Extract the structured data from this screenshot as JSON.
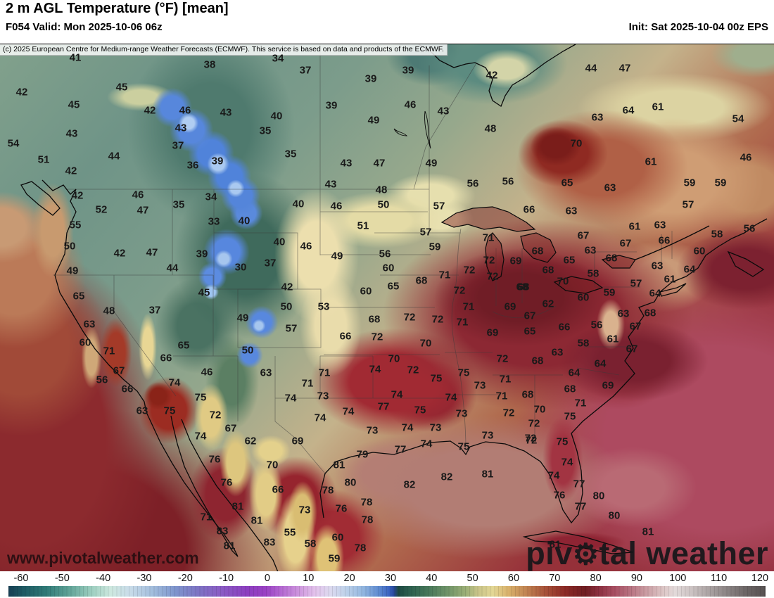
{
  "header": {
    "title": "2 m AGL Temperature (°F) [mean]",
    "valid": "F054 Valid: Mon 2025-10-06 06z",
    "init": "Init: Sat 2025-10-04 00z EPS"
  },
  "copyright": "(c) 2025 European Centre for Medium-range Weather Forecasts (ECMWF). This service is based on data and products of the ECMWF.",
  "watermarks": {
    "site": "www.pivotalweather.com",
    "logo_pre": "piv",
    "logo_gear": "⚙",
    "logo_post": "tal weather"
  },
  "colorbar": {
    "unit": "°F",
    "range": [
      -63,
      123
    ],
    "ticks": [
      "-60",
      "-50",
      "-40",
      "-30",
      "-20",
      "-10",
      "0",
      "10",
      "20",
      "30",
      "40",
      "50",
      "60",
      "70",
      "80",
      "90",
      "100",
      "110",
      "120"
    ],
    "gradient": [
      [
        0,
        "#173f54"
      ],
      [
        2,
        "#1e5a63"
      ],
      [
        5,
        "#2f7a77"
      ],
      [
        8,
        "#5fa397"
      ],
      [
        11,
        "#9dcfc0"
      ],
      [
        13.5,
        "#cde8df"
      ],
      [
        16,
        "#c9dce9"
      ],
      [
        19,
        "#a3bedd"
      ],
      [
        22,
        "#7e95cd"
      ],
      [
        25,
        "#7d74c4"
      ],
      [
        28,
        "#8a5cc4"
      ],
      [
        31.5,
        "#8c3ec0"
      ],
      [
        34,
        "#9a41c4"
      ],
      [
        36,
        "#b468d2"
      ],
      [
        38.5,
        "#cf97de"
      ],
      [
        40.5,
        "#e3c2ec"
      ],
      [
        42.5,
        "#dcd9ef"
      ],
      [
        44.5,
        "#bfd2ea"
      ],
      [
        47,
        "#8fb4df"
      ],
      [
        49,
        "#5c88d0"
      ],
      [
        50.3,
        "#3a62c0"
      ],
      [
        50.9,
        "#27489a"
      ],
      [
        51.5,
        "#1d4a43"
      ],
      [
        53,
        "#2c5f4e"
      ],
      [
        55.5,
        "#47785a"
      ],
      [
        58,
        "#6f9468"
      ],
      [
        60.5,
        "#9db077"
      ],
      [
        62,
        "#c9c489"
      ],
      [
        64,
        "#e3d795"
      ],
      [
        66,
        "#d9b26c"
      ],
      [
        68.5,
        "#c08150"
      ],
      [
        71,
        "#a65038"
      ],
      [
        73.5,
        "#8c2a26"
      ],
      [
        76.2,
        "#6f1d22"
      ],
      [
        78,
        "#8c3040"
      ],
      [
        80,
        "#a84e62"
      ],
      [
        82.3,
        "#b97583"
      ],
      [
        84,
        "#c9989f"
      ],
      [
        86.5,
        "#ddc6c6"
      ],
      [
        88,
        "#e3dada"
      ],
      [
        90,
        "#cfc6c6"
      ],
      [
        92.5,
        "#aba3a3"
      ],
      [
        95,
        "#8a8383"
      ],
      [
        97.5,
        "#6b6565"
      ],
      [
        100,
        "#555050"
      ]
    ]
  },
  "map": {
    "stations": [
      [
        107,
        82,
        41
      ],
      [
        298,
        92,
        38
      ],
      [
        395,
        83,
        34
      ],
      [
        434,
        100,
        37
      ],
      [
        527,
        112,
        39
      ],
      [
        580,
        100,
        39
      ],
      [
        699,
        107,
        42
      ],
      [
        840,
        97,
        44
      ],
      [
        888,
        97,
        47
      ],
      [
        31,
        131,
        42
      ],
      [
        173,
        124,
        45
      ],
      [
        105,
        149,
        45
      ],
      [
        213,
        157,
        42
      ],
      [
        263,
        157,
        46
      ],
      [
        321,
        160,
        43
      ],
      [
        471,
        150,
        39
      ],
      [
        393,
        165,
        40
      ],
      [
        583,
        149,
        46
      ],
      [
        630,
        158,
        43
      ],
      [
        531,
        171,
        49
      ],
      [
        697,
        183,
        48
      ],
      [
        377,
        186,
        35
      ],
      [
        935,
        152,
        61
      ],
      [
        893,
        157,
        64
      ],
      [
        849,
        167,
        63
      ],
      [
        1049,
        169,
        54
      ],
      [
        102,
        190,
        43
      ],
      [
        257,
        182,
        43
      ],
      [
        253,
        207,
        37
      ],
      [
        19,
        204,
        54
      ],
      [
        62,
        227,
        51
      ],
      [
        162,
        222,
        44
      ],
      [
        309,
        229,
        39
      ],
      [
        274,
        235,
        36
      ],
      [
        413,
        219,
        35
      ],
      [
        492,
        232,
        43
      ],
      [
        539,
        232,
        47
      ],
      [
        613,
        232,
        49
      ],
      [
        819,
        204,
        70
      ],
      [
        925,
        230,
        61
      ],
      [
        1060,
        224,
        46
      ],
      [
        101,
        243,
        42
      ],
      [
        110,
        278,
        42
      ],
      [
        196,
        277,
        46
      ],
      [
        300,
        280,
        34
      ],
      [
        254,
        291,
        35
      ],
      [
        144,
        298,
        52
      ],
      [
        203,
        299,
        47
      ],
      [
        470,
        262,
        43
      ],
      [
        542,
        270,
        48
      ],
      [
        424,
        290,
        40
      ],
      [
        478,
        293,
        46
      ],
      [
        545,
        291,
        50
      ],
      [
        624,
        293,
        57
      ],
      [
        672,
        261,
        56
      ],
      [
        722,
        258,
        56
      ],
      [
        806,
        260,
        65
      ],
      [
        867,
        267,
        63
      ],
      [
        980,
        260,
        59
      ],
      [
        1024,
        260,
        59
      ],
      [
        978,
        291,
        57
      ],
      [
        752,
        298,
        66
      ],
      [
        812,
        300,
        63
      ],
      [
        107,
        320,
        55
      ],
      [
        304,
        315,
        33
      ],
      [
        347,
        314,
        40
      ],
      [
        99,
        350,
        50
      ],
      [
        170,
        360,
        42
      ],
      [
        216,
        359,
        47
      ],
      [
        287,
        361,
        39
      ],
      [
        397,
        344,
        40
      ],
      [
        435,
        350,
        46
      ],
      [
        516,
        321,
        51
      ],
      [
        605,
        330,
        57
      ],
      [
        618,
        351,
        59
      ],
      [
        694,
        338,
        71
      ],
      [
        829,
        335,
        67
      ],
      [
        902,
        322,
        61
      ],
      [
        938,
        320,
        63
      ],
      [
        1065,
        325,
        56
      ],
      [
        1019,
        333,
        58
      ],
      [
        103,
        385,
        49
      ],
      [
        245,
        381,
        44
      ],
      [
        342,
        380,
        30
      ],
      [
        384,
        374,
        37
      ],
      [
        479,
        364,
        49
      ],
      [
        547,
        361,
        56
      ],
      [
        552,
        381,
        60
      ],
      [
        599,
        399,
        68
      ],
      [
        559,
        407,
        65
      ],
      [
        667,
        384,
        72
      ],
      [
        695,
        370,
        72
      ],
      [
        733,
        371,
        69
      ],
      [
        764,
        357,
        68
      ],
      [
        809,
        370,
        65
      ],
      [
        839,
        356,
        63
      ],
      [
        869,
        367,
        68
      ],
      [
        944,
        342,
        66
      ],
      [
        889,
        346,
        67
      ],
      [
        994,
        357,
        60
      ],
      [
        632,
        391,
        71
      ],
      [
        700,
        393,
        72
      ],
      [
        779,
        384,
        68
      ],
      [
        843,
        389,
        58
      ],
      [
        800,
        400,
        70
      ],
      [
        904,
        403,
        57
      ],
      [
        934,
        378,
        63
      ],
      [
        980,
        383,
        64
      ],
      [
        952,
        397,
        61
      ],
      [
        744,
        408,
        68
      ],
      [
        866,
        416,
        59
      ],
      [
        829,
        423,
        60
      ],
      [
        931,
        417,
        64
      ],
      [
        112,
        421,
        65
      ],
      [
        290,
        416,
        45
      ],
      [
        408,
        408,
        42
      ],
      [
        520,
        414,
        60
      ],
      [
        653,
        413,
        72
      ],
      [
        742,
        408,
        68
      ],
      [
        155,
        442,
        48
      ],
      [
        220,
        441,
        37
      ],
      [
        345,
        452,
        49
      ],
      [
        407,
        436,
        50
      ],
      [
        460,
        436,
        53
      ],
      [
        666,
        436,
        71
      ],
      [
        725,
        436,
        69
      ],
      [
        779,
        432,
        62
      ],
      [
        127,
        461,
        63
      ],
      [
        414,
        467,
        57
      ],
      [
        532,
        454,
        68
      ],
      [
        582,
        451,
        72
      ],
      [
        622,
        454,
        72
      ],
      [
        657,
        458,
        71
      ],
      [
        700,
        473,
        69
      ],
      [
        753,
        449,
        67
      ],
      [
        753,
        471,
        65
      ],
      [
        886,
        446,
        63
      ],
      [
        924,
        445,
        68
      ],
      [
        121,
        487,
        60
      ],
      [
        261,
        491,
        65
      ],
      [
        155,
        499,
        71
      ],
      [
        352,
        498,
        50
      ],
      [
        491,
        478,
        66
      ],
      [
        536,
        479,
        72
      ],
      [
        605,
        488,
        70
      ],
      [
        802,
        465,
        66
      ],
      [
        848,
        462,
        56
      ],
      [
        903,
        464,
        67
      ],
      [
        829,
        488,
        58
      ],
      [
        871,
        482,
        61
      ],
      [
        898,
        496,
        67
      ],
      [
        236,
        509,
        66
      ],
      [
        294,
        529,
        46
      ],
      [
        378,
        530,
        63
      ],
      [
        461,
        530,
        71
      ],
      [
        560,
        510,
        70
      ],
      [
        533,
        525,
        74
      ],
      [
        587,
        526,
        72
      ],
      [
        714,
        510,
        72
      ],
      [
        620,
        538,
        75
      ],
      [
        659,
        530,
        75
      ],
      [
        682,
        548,
        73
      ],
      [
        718,
        539,
        71
      ],
      [
        792,
        501,
        63
      ],
      [
        764,
        513,
        68
      ],
      [
        853,
        517,
        64
      ],
      [
        816,
        530,
        64
      ],
      [
        810,
        553,
        68
      ],
      [
        864,
        548,
        69
      ],
      [
        169,
        527,
        67
      ],
      [
        145,
        540,
        56
      ],
      [
        248,
        544,
        74
      ],
      [
        181,
        553,
        66
      ],
      [
        437,
        545,
        71
      ],
      [
        413,
        566,
        74
      ],
      [
        459,
        563,
        73
      ],
      [
        285,
        565,
        75
      ],
      [
        202,
        584,
        63
      ],
      [
        241,
        584,
        75
      ],
      [
        306,
        590,
        72
      ],
      [
        328,
        609,
        67
      ],
      [
        356,
        627,
        62
      ],
      [
        285,
        620,
        74
      ],
      [
        545,
        578,
        77
      ],
      [
        564,
        561,
        74
      ],
      [
        597,
        583,
        75
      ],
      [
        641,
        565,
        74
      ],
      [
        656,
        588,
        73
      ],
      [
        723,
        587,
        72
      ],
      [
        713,
        563,
        71
      ],
      [
        495,
        585,
        74
      ],
      [
        455,
        594,
        74
      ],
      [
        529,
        612,
        73
      ],
      [
        579,
        608,
        74
      ],
      [
        619,
        608,
        73
      ],
      [
        693,
        619,
        73
      ],
      [
        754,
        623,
        72
      ],
      [
        423,
        627,
        69
      ],
      [
        606,
        631,
        74
      ],
      [
        659,
        635,
        75
      ],
      [
        569,
        639,
        77
      ],
      [
        515,
        646,
        79
      ],
      [
        387,
        661,
        70
      ],
      [
        482,
        661,
        81
      ],
      [
        305,
        653,
        76
      ],
      [
        322,
        686,
        76
      ],
      [
        635,
        678,
        82
      ],
      [
        693,
        674,
        81
      ],
      [
        582,
        689,
        82
      ],
      [
        498,
        686,
        80
      ],
      [
        395,
        696,
        66
      ],
      [
        466,
        697,
        78
      ],
      [
        433,
        725,
        73
      ],
      [
        485,
        723,
        76
      ],
      [
        521,
        714,
        78
      ],
      [
        522,
        739,
        78
      ],
      [
        338,
        720,
        81
      ],
      [
        365,
        740,
        81
      ],
      [
        293,
        735,
        71
      ],
      [
        316,
        755,
        83
      ],
      [
        326,
        776,
        81
      ],
      [
        412,
        757,
        55
      ],
      [
        441,
        773,
        58
      ],
      [
        480,
        764,
        60
      ],
      [
        475,
        794,
        59
      ],
      [
        512,
        779,
        78
      ],
      [
        383,
        771,
        83
      ],
      [
        750,
        561,
        68
      ],
      [
        825,
        573,
        71
      ],
      [
        767,
        582,
        70
      ],
      [
        810,
        592,
        75
      ],
      [
        759,
        602,
        72
      ],
      [
        755,
        626,
        72
      ],
      [
        799,
        628,
        75
      ],
      [
        806,
        657,
        74
      ],
      [
        787,
        676,
        74
      ],
      [
        823,
        688,
        77
      ],
      [
        795,
        704,
        76
      ],
      [
        851,
        705,
        80
      ],
      [
        825,
        720,
        77
      ],
      [
        873,
        733,
        80
      ],
      [
        921,
        756,
        81
      ],
      [
        789,
        774,
        81
      ]
    ]
  }
}
